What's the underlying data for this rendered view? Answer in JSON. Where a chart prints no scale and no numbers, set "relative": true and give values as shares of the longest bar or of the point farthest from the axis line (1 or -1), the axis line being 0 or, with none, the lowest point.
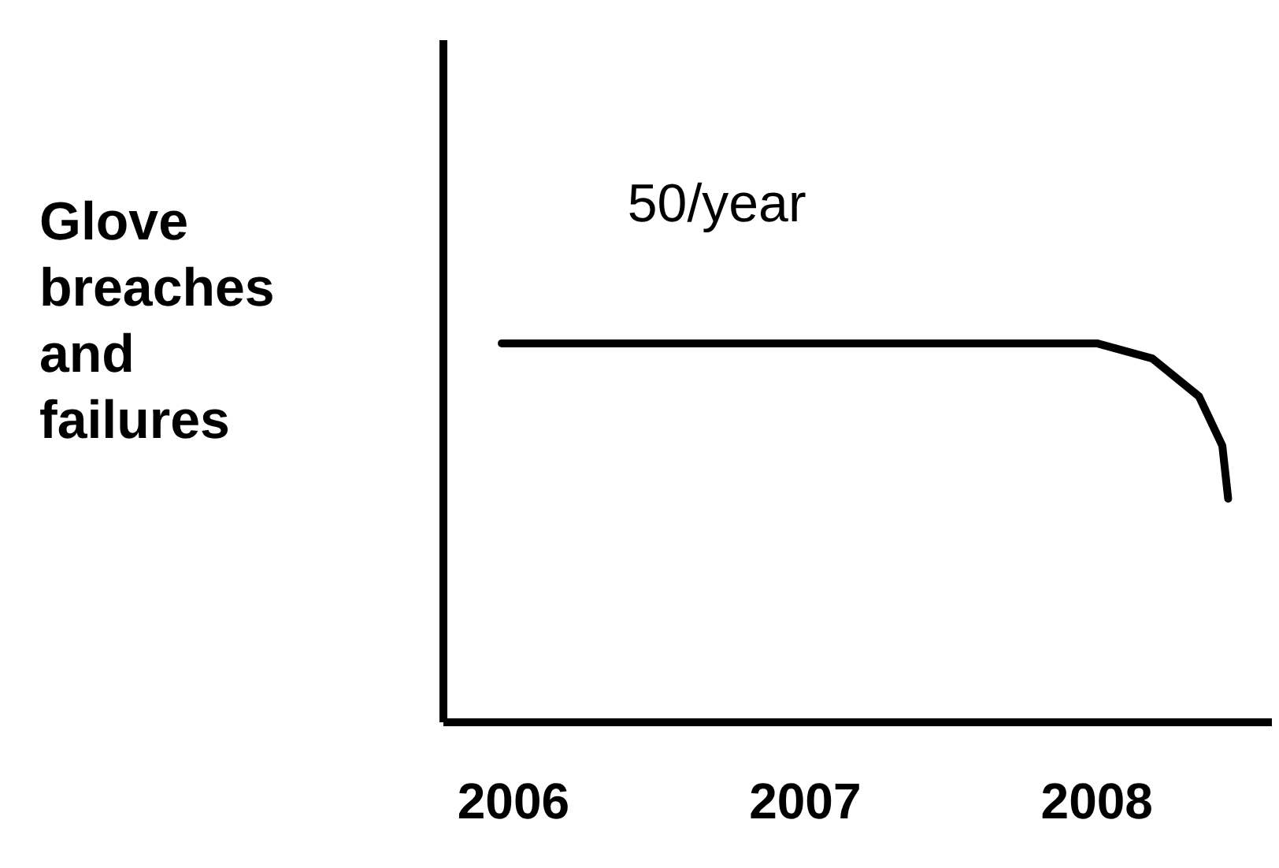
{
  "chart_data": {
    "type": "line",
    "relative": true,
    "ylabel": "Glove\nbreaches\nand\nfailures",
    "x": [
      2005.96,
      2006.5,
      2007.0,
      2007.5,
      2008.0,
      2008.19,
      2008.35,
      2008.43,
      2008.45
    ],
    "series": [
      {
        "color": "#000000",
        "values": [
          1,
          1,
          1,
          1,
          1,
          0.96,
          0.86,
          0.73,
          0.59
        ]
      }
    ],
    "xlim": [
      2005.76,
      2008.6
    ],
    "xticks": [
      2006,
      2007,
      2008
    ],
    "annotations": [
      "50/year"
    ],
    "grid": false,
    "marker": "none",
    "line_style": "solid"
  }
}
